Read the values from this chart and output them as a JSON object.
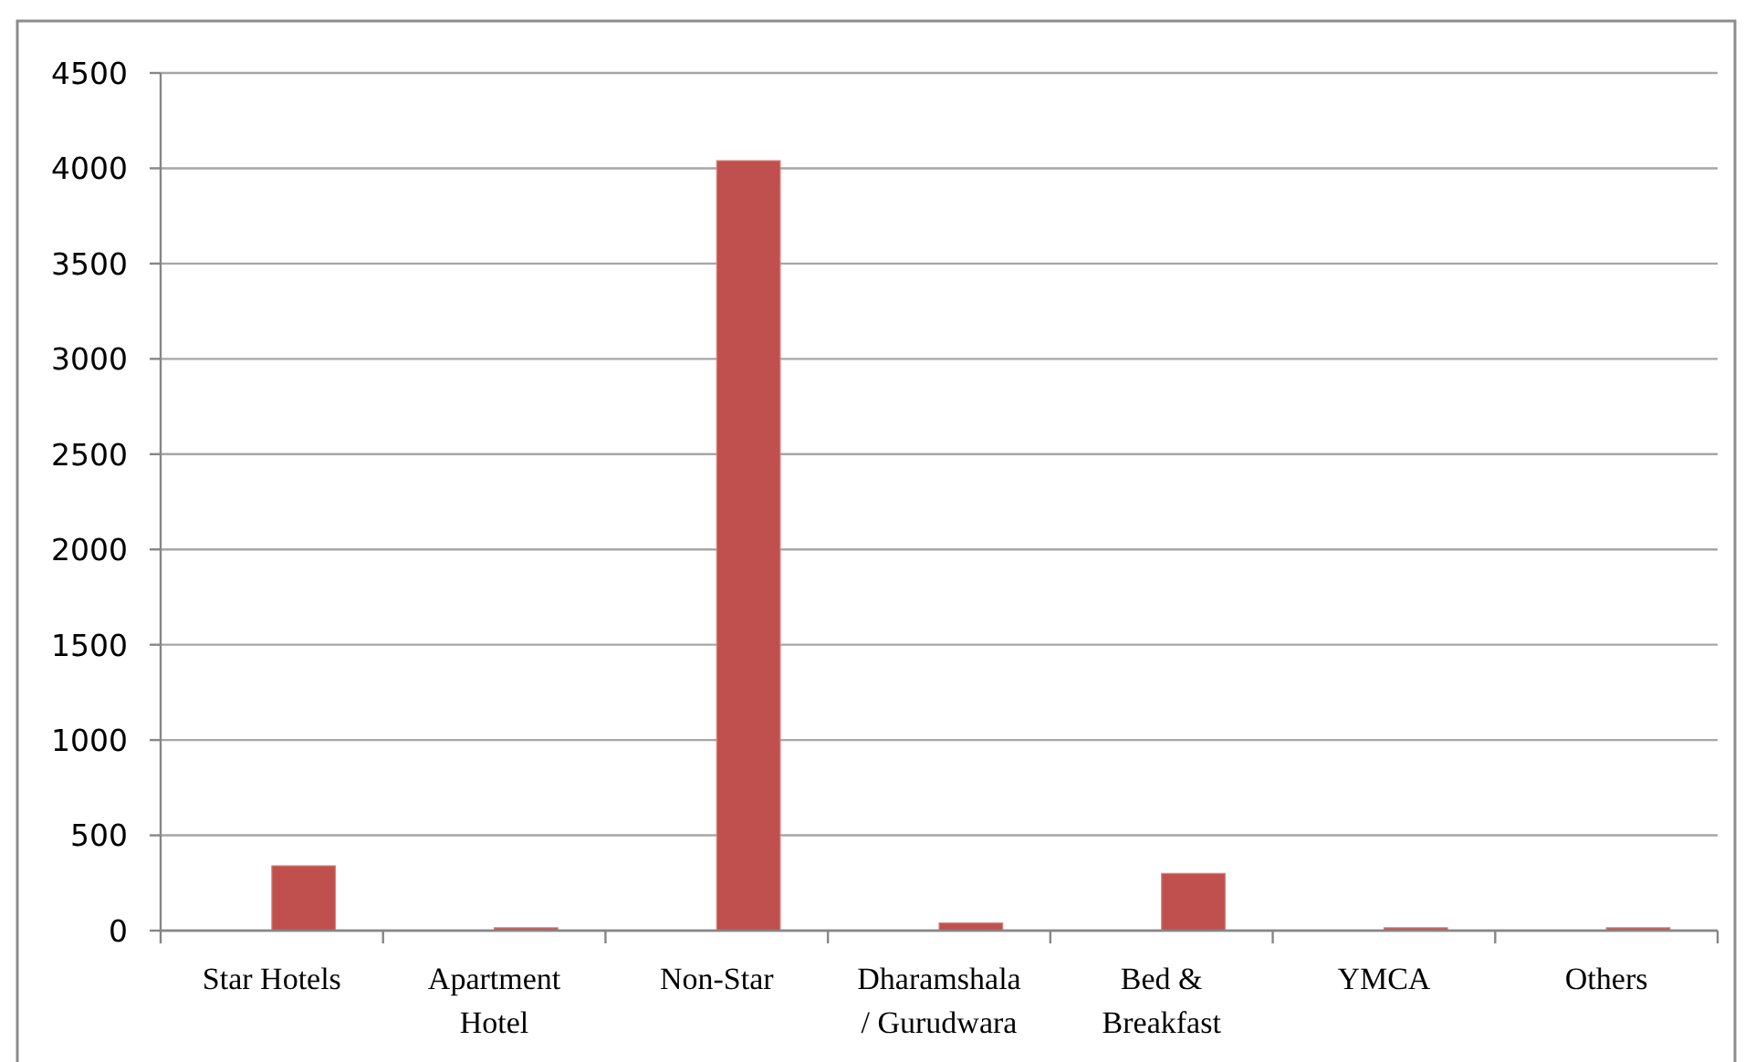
{
  "chart_data": {
    "type": "bar",
    "categories": [
      "Star Hotels",
      "Apartment Hotel",
      "Non-Star",
      "Dharamshala / Gurudwara",
      "Bed & Breakfast",
      "YMCA",
      "Others"
    ],
    "values": [
      340,
      15,
      4040,
      40,
      300,
      15,
      15
    ],
    "color": "#c0504d",
    "ylim": [
      0,
      4500
    ],
    "yticks": [
      0,
      500,
      1000,
      1500,
      2000,
      2500,
      3000,
      3500,
      4000,
      4500
    ],
    "grid": "y"
  }
}
